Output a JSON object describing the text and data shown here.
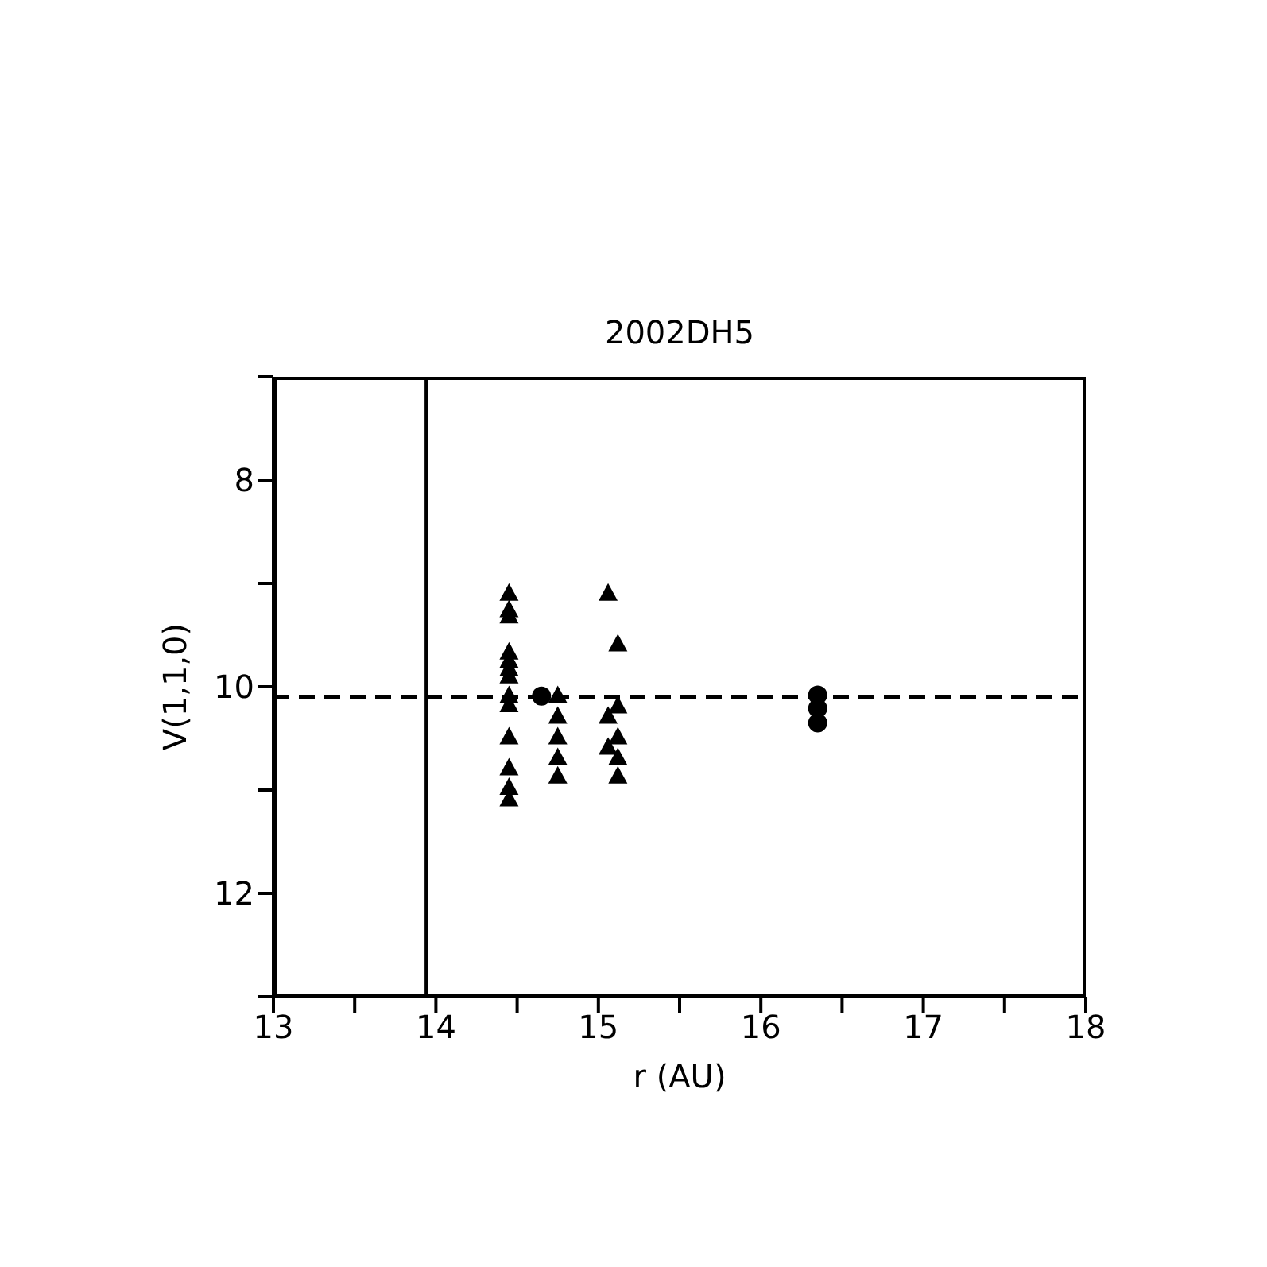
{
  "chart_data": {
    "type": "scatter",
    "title": "2002DH5",
    "xlabel": "r (AU)",
    "ylabel": "V(1,1,0)",
    "xlim": [
      13,
      18
    ],
    "xticks": [
      13,
      {
        "value": 13.5,
        "label": null
      },
      14,
      {
        "value": 14.5,
        "label": null
      },
      15,
      {
        "value": 15.5,
        "label": null
      },
      16,
      {
        "value": 16.5,
        "label": null
      },
      17,
      {
        "value": 17.5,
        "label": null
      },
      18
    ],
    "ylim": [
      13,
      7
    ],
    "yticks": [
      {
        "value": 7,
        "label": null
      },
      8,
      {
        "value": 9,
        "label": null
      },
      10,
      {
        "value": 11,
        "label": null
      },
      12,
      {
        "value": 13,
        "label": null
      }
    ],
    "grid": false,
    "legend": false,
    "series": [
      {
        "color": "#000000",
        "marker": "triangle",
        "x": [
          14.45,
          14.45,
          14.45,
          14.45,
          14.45,
          14.45,
          14.45,
          14.45,
          14.45,
          14.45,
          14.45,
          14.45,
          14.45,
          14.75,
          14.75,
          14.75,
          14.75,
          14.75,
          15.06,
          15.06,
          15.06,
          15.12,
          15.12,
          15.12,
          15.12,
          15.12
        ],
        "values": [
          9.09,
          9.25,
          9.31,
          9.66,
          9.74,
          9.82,
          9.89,
          10.08,
          10.17,
          10.48,
          10.78,
          10.97,
          11.08,
          10.08,
          10.28,
          10.48,
          10.68,
          10.86,
          9.09,
          10.28,
          10.58,
          9.58,
          10.18,
          10.48,
          10.68,
          10.86
        ]
      },
      {
        "color": "#000000",
        "marker": "circle",
        "x": [
          14.65,
          16.35,
          16.35,
          16.35
        ],
        "values": [
          10.09,
          10.08,
          10.21,
          10.35
        ]
      }
    ],
    "ref_lines": [
      {
        "axis": "y",
        "value": 10.1,
        "line_style": "dashed",
        "color": "#000000"
      },
      {
        "axis": "x",
        "value": 13.94,
        "line_style": "solid",
        "color": "#000000"
      }
    ]
  }
}
